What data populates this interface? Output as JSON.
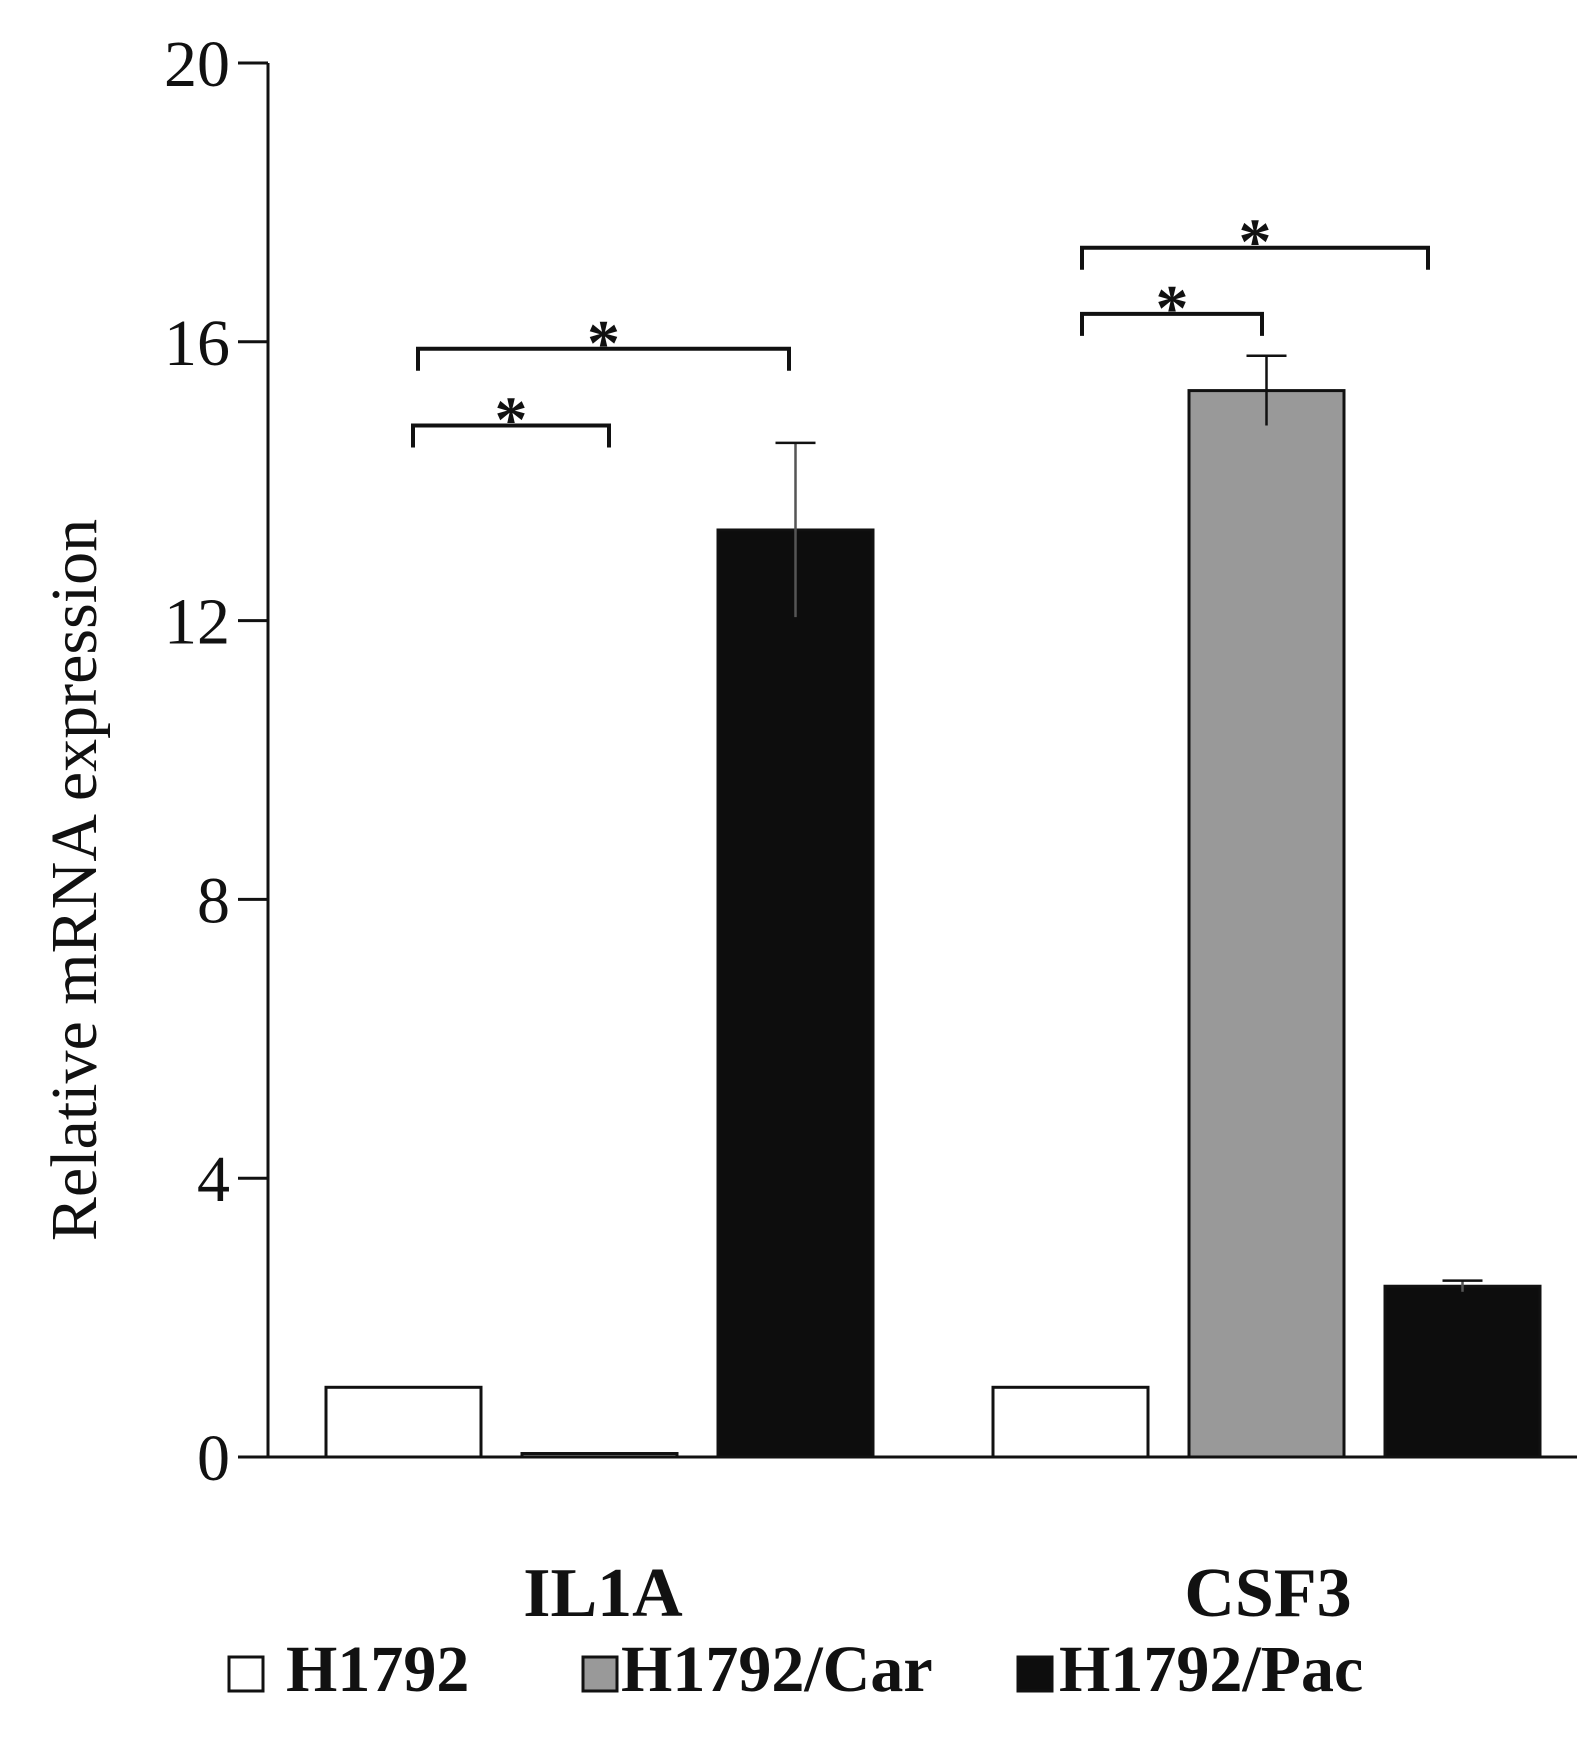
{
  "chart_data": {
    "type": "bar",
    "title": "",
    "xlabel": "",
    "ylabel": "Relative mRNA expression",
    "ylim": [
      0,
      20
    ],
    "yticks": [
      0,
      4,
      8,
      12,
      16,
      20
    ],
    "ytick_labels": [
      "0",
      "4",
      "8",
      "12",
      "16",
      "20"
    ],
    "categories": [
      "IL1A",
      "CSF3"
    ],
    "series": [
      {
        "name": "H1792",
        "color": "#ffffff",
        "values": [
          1.0,
          1.0
        ],
        "errors": [
          0,
          0
        ]
      },
      {
        "name": "H1792/Car",
        "color": "#999999",
        "values": [
          0.05,
          15.3
        ],
        "errors": [
          0,
          0.5
        ]
      },
      {
        "name": "H1792/Pac",
        "color": "#0d0d0d",
        "values": [
          13.3,
          2.45
        ],
        "errors": [
          1.25,
          0.08
        ]
      }
    ],
    "legend": {
      "position": "bottom"
    },
    "significance": [
      {
        "category": "IL1A",
        "from_series": 0,
        "to_series": 1,
        "label": "*",
        "level": 14.8
      },
      {
        "category": "IL1A",
        "from_series": 0,
        "to_series": 2,
        "label": "*",
        "level": 15.9
      },
      {
        "category": "CSF3",
        "from_series": 0,
        "to_series": 1,
        "label": "*",
        "level": 16.4
      },
      {
        "category": "CSF3",
        "from_series": 0,
        "to_series": 2,
        "label": "*",
        "level": 17.35
      }
    ]
  }
}
